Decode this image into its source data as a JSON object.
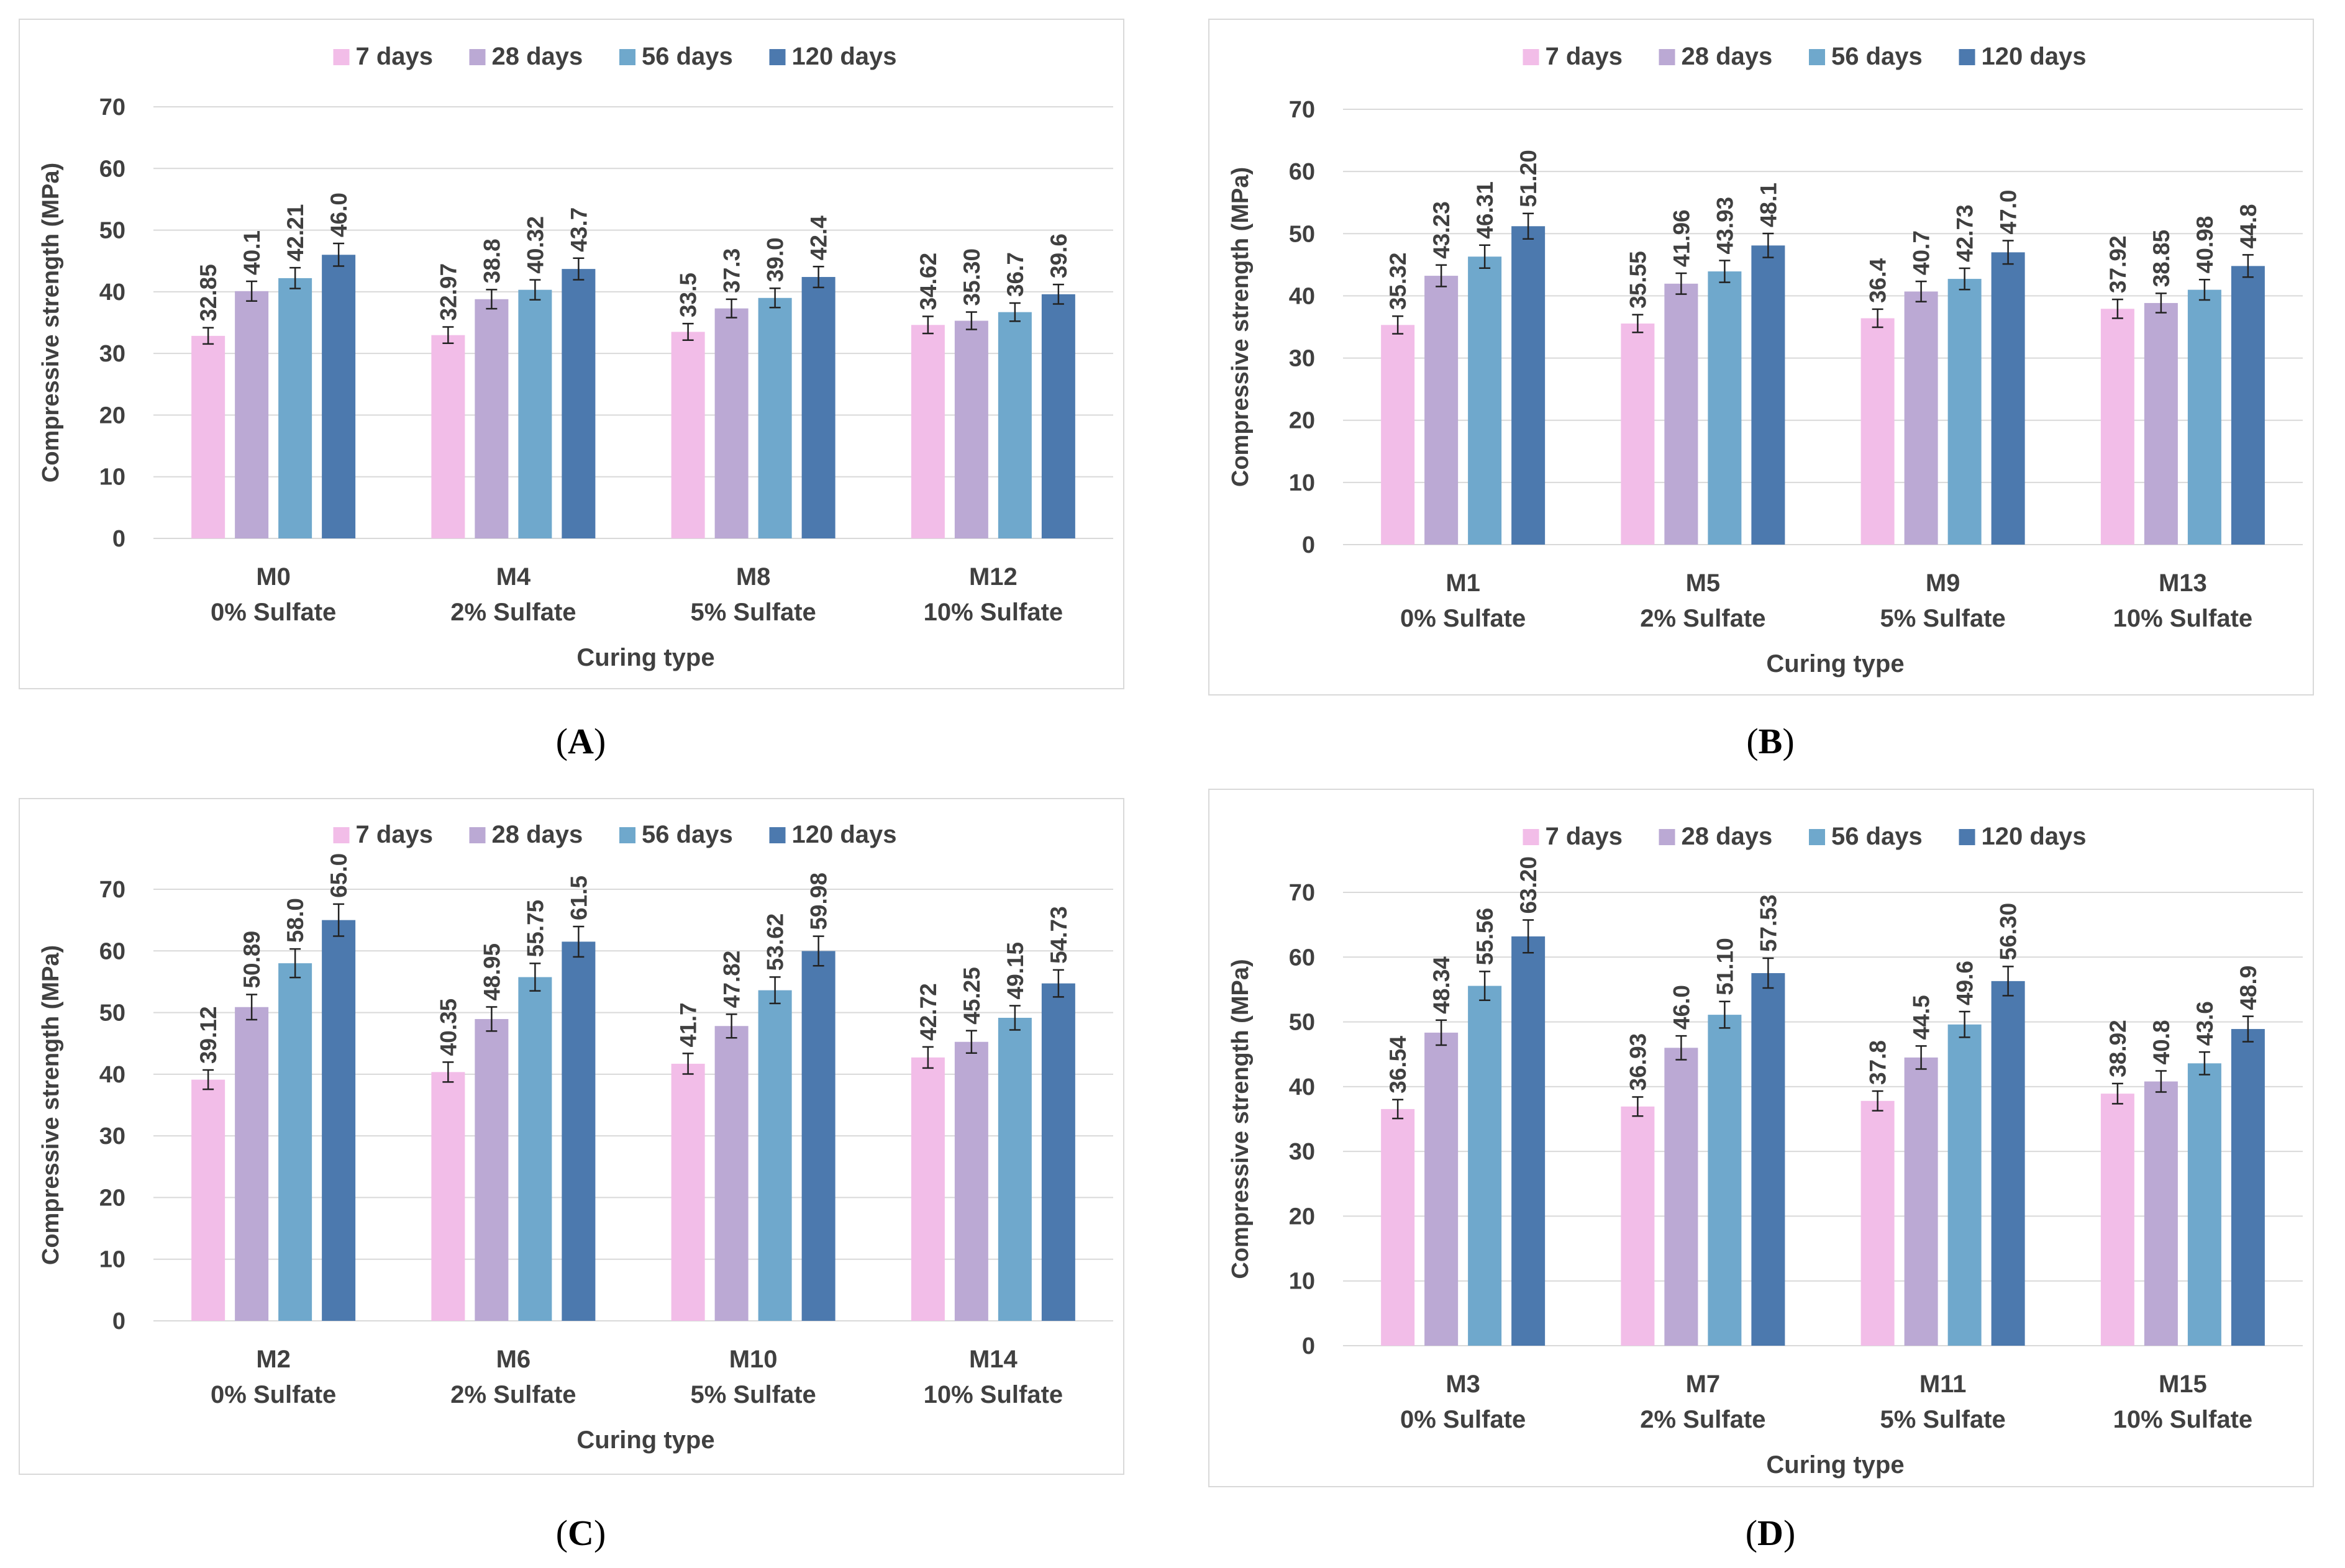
{
  "colors": {
    "7 days": "#f2bde8",
    "28 days": "#bba9d4",
    "56 days": "#6fa8cc",
    "120 days": "#4c79ae",
    "grid": "#d9d9d9",
    "text": "#404040"
  },
  "chart_data": [
    {
      "panel_label": "A",
      "type": "bar",
      "ylabel": "Compressive strength (MPa)",
      "xlabel": "Curing type",
      "ylim": [
        0,
        70
      ],
      "yticks": [
        0,
        10,
        20,
        30,
        40,
        50,
        60,
        70
      ],
      "grid": true,
      "legend_position": "top",
      "categories": [
        [
          "M0",
          "0% Sulfate"
        ],
        [
          "M4",
          "2% Sulfate"
        ],
        [
          "M8",
          "5% Sulfate"
        ],
        [
          "M12",
          "10% Sulfate"
        ]
      ],
      "series": [
        {
          "name": "7 days",
          "values": [
            32.85,
            32.97,
            33.5,
            34.62
          ],
          "labels": [
            "32.85",
            "32.97",
            "33.5",
            "34.62"
          ]
        },
        {
          "name": "28 days",
          "values": [
            40.1,
            38.8,
            37.3,
            35.3
          ],
          "labels": [
            "40.1",
            "38.8",
            "37.3",
            "35.30"
          ]
        },
        {
          "name": "56 days",
          "values": [
            42.21,
            40.32,
            39.0,
            36.7
          ],
          "labels": [
            "42.21",
            "40.32",
            "39.0",
            "36.7"
          ]
        },
        {
          "name": "120 days",
          "values": [
            46.0,
            43.7,
            42.4,
            39.6
          ],
          "labels": [
            "46.0",
            "43.7",
            "42.4",
            "39.6"
          ]
        }
      ]
    },
    {
      "panel_label": "B",
      "type": "bar",
      "ylabel": "Compressive strength (MPa)",
      "xlabel": "Curing type",
      "ylim": [
        0,
        70
      ],
      "yticks": [
        0,
        10,
        20,
        30,
        40,
        50,
        60,
        70
      ],
      "grid": true,
      "legend_position": "top",
      "categories": [
        [
          "M1",
          "0% Sulfate"
        ],
        [
          "M5",
          "2% Sulfate"
        ],
        [
          "M9",
          "5% Sulfate"
        ],
        [
          "M13",
          "10% Sulfate"
        ]
      ],
      "series": [
        {
          "name": "7 days",
          "values": [
            35.32,
            35.55,
            36.4,
            37.92
          ],
          "labels": [
            "35.32",
            "35.55",
            "36.4",
            "37.92"
          ]
        },
        {
          "name": "28 days",
          "values": [
            43.23,
            41.96,
            40.7,
            38.85
          ],
          "labels": [
            "43.23",
            "41.96",
            "40.7",
            "38.85"
          ]
        },
        {
          "name": "56 days",
          "values": [
            46.31,
            43.93,
            42.73,
            40.98
          ],
          "labels": [
            "46.31",
            "43.93",
            "42.73",
            "40.98"
          ]
        },
        {
          "name": "120 days",
          "values": [
            51.2,
            48.1,
            47.0,
            44.8
          ],
          "labels": [
            "51.20",
            "48.1",
            "47.0",
            "44.8"
          ]
        }
      ]
    },
    {
      "panel_label": "C",
      "type": "bar",
      "ylabel": "Compressive strength (MPa)",
      "xlabel": "Curing type",
      "ylim": [
        0,
        70
      ],
      "yticks": [
        0,
        10,
        20,
        30,
        40,
        50,
        60,
        70
      ],
      "grid": true,
      "legend_position": "top",
      "categories": [
        [
          "M2",
          "0% Sulfate"
        ],
        [
          "M6",
          "2% Sulfate"
        ],
        [
          "M10",
          "5% Sulfate"
        ],
        [
          "M14",
          "10% Sulfate"
        ]
      ],
      "series": [
        {
          "name": "7 days",
          "values": [
            39.12,
            40.35,
            41.7,
            42.72
          ],
          "labels": [
            "39.12",
            "40.35",
            "41.7",
            "42.72"
          ]
        },
        {
          "name": "28 days",
          "values": [
            50.89,
            48.95,
            47.82,
            45.25
          ],
          "labels": [
            "50.89",
            "48.95",
            "47.82",
            "45.25"
          ]
        },
        {
          "name": "56 days",
          "values": [
            58.0,
            55.75,
            53.62,
            49.15
          ],
          "labels": [
            "58.0",
            "55.75",
            "53.62",
            "49.15"
          ]
        },
        {
          "name": "120 days",
          "values": [
            65.0,
            61.5,
            59.98,
            54.73
          ],
          "labels": [
            "65.0",
            "61.5",
            "59.98",
            "54.73"
          ]
        }
      ]
    },
    {
      "panel_label": "D",
      "type": "bar",
      "ylabel": "Compressive strength (MPa)",
      "xlabel": "Curing type",
      "ylim": [
        0,
        70
      ],
      "yticks": [
        0,
        10,
        20,
        30,
        40,
        50,
        60,
        70
      ],
      "grid": true,
      "legend_position": "top",
      "categories": [
        [
          "M3",
          "0% Sulfate"
        ],
        [
          "M7",
          "2% Sulfate"
        ],
        [
          "M11",
          "5% Sulfate"
        ],
        [
          "M15",
          "10% Sulfate"
        ]
      ],
      "series": [
        {
          "name": "7 days",
          "values": [
            36.54,
            36.93,
            37.8,
            38.92
          ],
          "labels": [
            "36.54",
            "36.93",
            "37.8",
            "38.92"
          ]
        },
        {
          "name": "28 days",
          "values": [
            48.34,
            46.0,
            44.5,
            40.8
          ],
          "labels": [
            "48.34",
            "46.0",
            "44.5",
            "40.8"
          ]
        },
        {
          "name": "56 days",
          "values": [
            55.56,
            51.1,
            49.6,
            43.6
          ],
          "labels": [
            "55.56",
            "51.10",
            "49.6",
            "43.6"
          ]
        },
        {
          "name": "120 days",
          "values": [
            63.2,
            57.53,
            56.3,
            48.9
          ],
          "labels": [
            "63.20",
            "57.53",
            "56.30",
            "48.9"
          ]
        }
      ]
    }
  ]
}
